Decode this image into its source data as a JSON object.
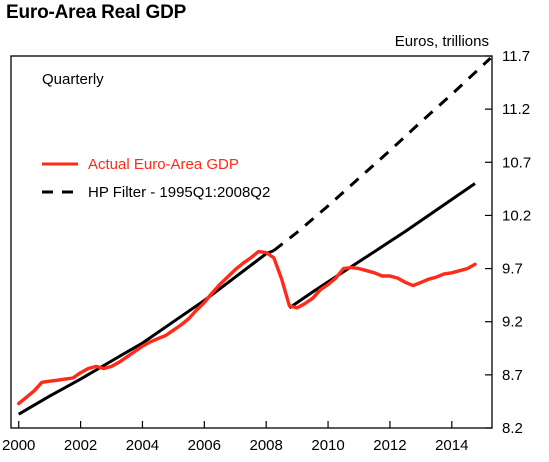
{
  "chart_data": {
    "type": "line",
    "title": "Euro-Area Real GDP",
    "y_unit_label": "Euros, trillions",
    "frequency_note": "Quarterly",
    "xlim": [
      1999.75,
      2015.3
    ],
    "ylim": [
      8.2,
      11.7
    ],
    "x_ticks": [
      2000,
      2002,
      2004,
      2006,
      2008,
      2010,
      2012,
      2014
    ],
    "y_ticks": [
      8.2,
      8.7,
      9.2,
      9.7,
      10.2,
      10.7,
      11.2,
      11.7
    ],
    "y_tick_labels": [
      "8.2",
      "8.7",
      "9.2",
      "9.7",
      "10.2",
      "10.7",
      "11.2",
      "11.7"
    ],
    "grid": false,
    "legend": [
      {
        "label": "Actual Euro-Area GDP",
        "color": "#ff2a1a",
        "style": "solid"
      },
      {
        "label": "HP Filter - 1995Q1:2008Q2",
        "color": "#000000",
        "style": "dashed"
      }
    ],
    "series": [
      {
        "name": "Actual Euro-Area GDP",
        "color": "#ff2a1a",
        "x": [
          2000.0,
          2000.25,
          2000.5,
          2000.75,
          2001.0,
          2001.25,
          2001.5,
          2001.75,
          2002.0,
          2002.25,
          2002.5,
          2002.75,
          2003.0,
          2003.25,
          2003.5,
          2003.75,
          2004.0,
          2004.25,
          2004.5,
          2004.75,
          2005.0,
          2005.25,
          2005.5,
          2005.75,
          2006.0,
          2006.25,
          2006.5,
          2006.75,
          2007.0,
          2007.25,
          2007.5,
          2007.75,
          2008.0,
          2008.25,
          2008.5,
          2008.75,
          2009.0,
          2009.25,
          2009.5,
          2009.75,
          2010.0,
          2010.25,
          2010.5,
          2010.75,
          2011.0,
          2011.25,
          2011.5,
          2011.75,
          2012.0,
          2012.25,
          2012.5,
          2012.75,
          2013.0,
          2013.25,
          2013.5,
          2013.75,
          2014.0,
          2014.25,
          2014.5,
          2014.75
        ],
        "values": [
          8.43,
          8.49,
          8.55,
          8.63,
          8.64,
          8.65,
          8.66,
          8.67,
          8.72,
          8.76,
          8.78,
          8.76,
          8.78,
          8.82,
          8.87,
          8.92,
          8.97,
          9.01,
          9.04,
          9.07,
          9.12,
          9.17,
          9.23,
          9.31,
          9.38,
          9.47,
          9.55,
          9.62,
          9.69,
          9.75,
          9.8,
          9.86,
          9.85,
          9.8,
          9.6,
          9.35,
          9.33,
          9.37,
          9.42,
          9.5,
          9.55,
          9.61,
          9.7,
          9.71,
          9.7,
          9.68,
          9.66,
          9.63,
          9.63,
          9.61,
          9.57,
          9.54,
          9.57,
          9.6,
          9.62,
          9.65,
          9.66,
          9.68,
          9.7,
          9.74
        ]
      },
      {
        "name": "HP Filter - 1995Q1:2008Q2",
        "color": "#000000",
        "x": [
          2000.0,
          2001.0,
          2002.0,
          2003.0,
          2004.0,
          2005.0,
          2006.0,
          2007.0,
          2008.0,
          2008.25,
          2009.0,
          2010.0,
          2011.0,
          2012.0,
          2013.0,
          2014.0,
          2015.25
        ],
        "values": [
          8.33,
          8.5,
          8.66,
          8.83,
          9.0,
          9.2,
          9.4,
          9.62,
          9.84,
          9.87,
          10.04,
          10.29,
          10.55,
          10.81,
          11.08,
          11.34,
          11.68
        ]
      },
      {
        "name": "",
        "color": "#000000",
        "x": [
          2008.75,
          2009.5,
          2010.5,
          2011.5,
          2012.5,
          2013.5,
          2014.75
        ],
        "values": [
          9.33,
          9.48,
          9.67,
          9.86,
          10.05,
          10.25,
          10.5
        ]
      }
    ]
  }
}
